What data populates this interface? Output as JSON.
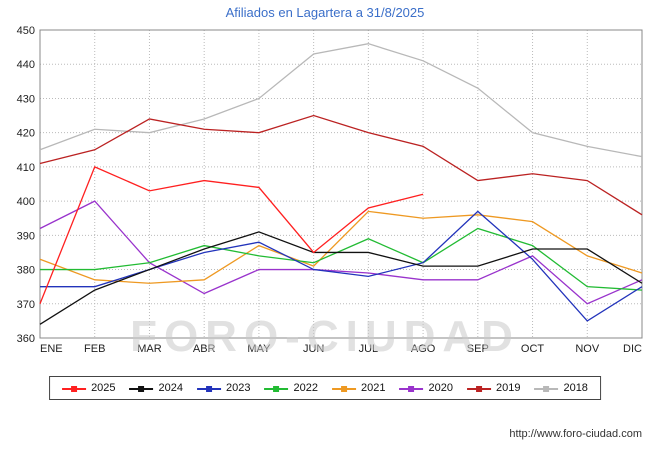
{
  "title": "Afiliados en Lagartera a 31/8/2025",
  "watermark": "FORO-CIUDAD",
  "url": "http://www.foro-ciudad.com",
  "chart_data": {
    "type": "line",
    "title": "Afiliados en Lagartera a 31/8/2025",
    "categories": [
      "ENE",
      "FEB",
      "MAR",
      "ABR",
      "MAY",
      "JUN",
      "JUL",
      "AGO",
      "SEP",
      "OCT",
      "NOV",
      "DIC"
    ],
    "ylim": [
      360,
      450
    ],
    "ytick_step": 10,
    "grid": true,
    "legend_position": "bottom",
    "axis_color": "#888888",
    "grid_color": "#bbbbbb",
    "series": [
      {
        "name": "2025",
        "color": "#ff2020",
        "values": [
          370,
          410,
          403,
          406,
          404,
          385,
          398,
          402
        ]
      },
      {
        "name": "2024",
        "color": "#111111",
        "values": [
          364,
          374,
          380,
          386,
          391,
          385,
          385,
          381,
          381,
          386,
          386,
          376
        ]
      },
      {
        "name": "2023",
        "color": "#2233bb",
        "values": [
          375,
          375,
          380,
          385,
          388,
          380,
          378,
          382,
          397,
          383,
          365,
          375
        ]
      },
      {
        "name": "2022",
        "color": "#22bb33",
        "values": [
          380,
          380,
          382,
          387,
          384,
          382,
          389,
          382,
          392,
          387,
          375,
          374
        ]
      },
      {
        "name": "2021",
        "color": "#ee9922",
        "values": [
          383,
          377,
          376,
          377,
          387,
          381,
          397,
          395,
          396,
          394,
          384,
          379
        ]
      },
      {
        "name": "2020",
        "color": "#9933cc",
        "values": [
          392,
          400,
          382,
          373,
          380,
          380,
          379,
          377,
          377,
          384,
          370,
          377
        ]
      },
      {
        "name": "2019",
        "color": "#bb2222",
        "values": [
          411,
          415,
          424,
          421,
          420,
          425,
          420,
          416,
          406,
          408,
          406,
          396
        ]
      },
      {
        "name": "2018",
        "color": "#b8b8b8",
        "values": [
          415,
          421,
          420,
          424,
          430,
          443,
          446,
          441,
          433,
          420,
          416,
          413
        ]
      }
    ]
  }
}
